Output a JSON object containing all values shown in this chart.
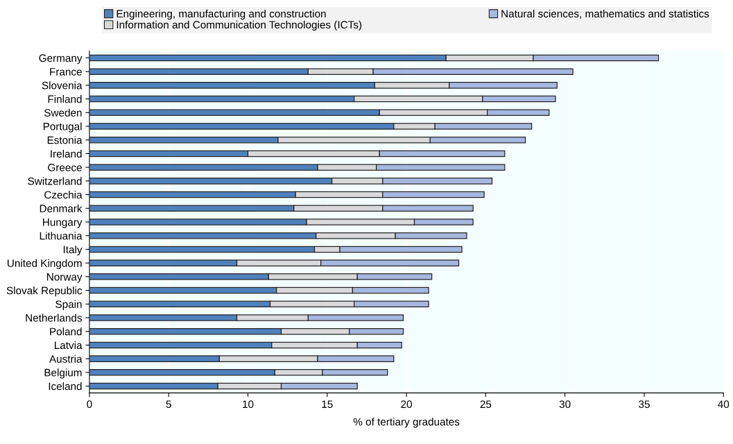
{
  "chart_data": {
    "type": "bar",
    "orientation": "horizontal",
    "stacked": true,
    "xlabel": "% of tertiary graduates",
    "categories": [
      "Germany",
      "France",
      "Slovenia",
      "Finland",
      "Sweden",
      "Portugal",
      "Estonia",
      "Ireland",
      "Greece",
      "Switzerland",
      "Czechia",
      "Denmark",
      "Hungary",
      "Lithuania",
      "Italy",
      "United Kingdom",
      "Norway",
      "Slovak Republic",
      "Spain",
      "Netherlands",
      "Poland",
      "Latvia",
      "Austria",
      "Belgium",
      "Iceland"
    ],
    "series": [
      {
        "name": "Engineering, manufacturing and construction",
        "color": "#4f81bd",
        "values": [
          22.5,
          13.8,
          18.0,
          16.7,
          18.3,
          19.2,
          11.9,
          10.0,
          14.4,
          15.3,
          13.0,
          12.9,
          13.7,
          14.3,
          14.2,
          9.3,
          11.3,
          11.8,
          11.4,
          9.3,
          12.1,
          11.5,
          8.2,
          11.7,
          8.1
        ]
      },
      {
        "name": "Information and Communication Technologies (ICTs)",
        "color": "#d9d9d9",
        "values": [
          5.5,
          4.1,
          4.7,
          8.1,
          6.8,
          2.6,
          9.6,
          8.3,
          3.7,
          3.2,
          5.5,
          5.6,
          6.8,
          5.0,
          1.6,
          5.3,
          5.6,
          4.8,
          5.3,
          4.5,
          4.3,
          5.4,
          6.2,
          3.0,
          4.0
        ]
      },
      {
        "name": "Natural sciences, mathematics and statistics",
        "color": "#a6b7e0",
        "values": [
          7.9,
          12.6,
          6.8,
          4.6,
          3.9,
          6.1,
          6.0,
          7.9,
          8.1,
          6.9,
          6.4,
          5.7,
          3.7,
          4.5,
          7.7,
          8.7,
          4.7,
          4.8,
          4.7,
          6.0,
          3.4,
          2.8,
          4.8,
          4.1,
          4.8
        ]
      }
    ],
    "xlim": [
      0,
      40
    ],
    "xticks": [
      0,
      5,
      10,
      15,
      20,
      25,
      30,
      35,
      40
    ],
    "grid": "x",
    "legend": "top"
  }
}
